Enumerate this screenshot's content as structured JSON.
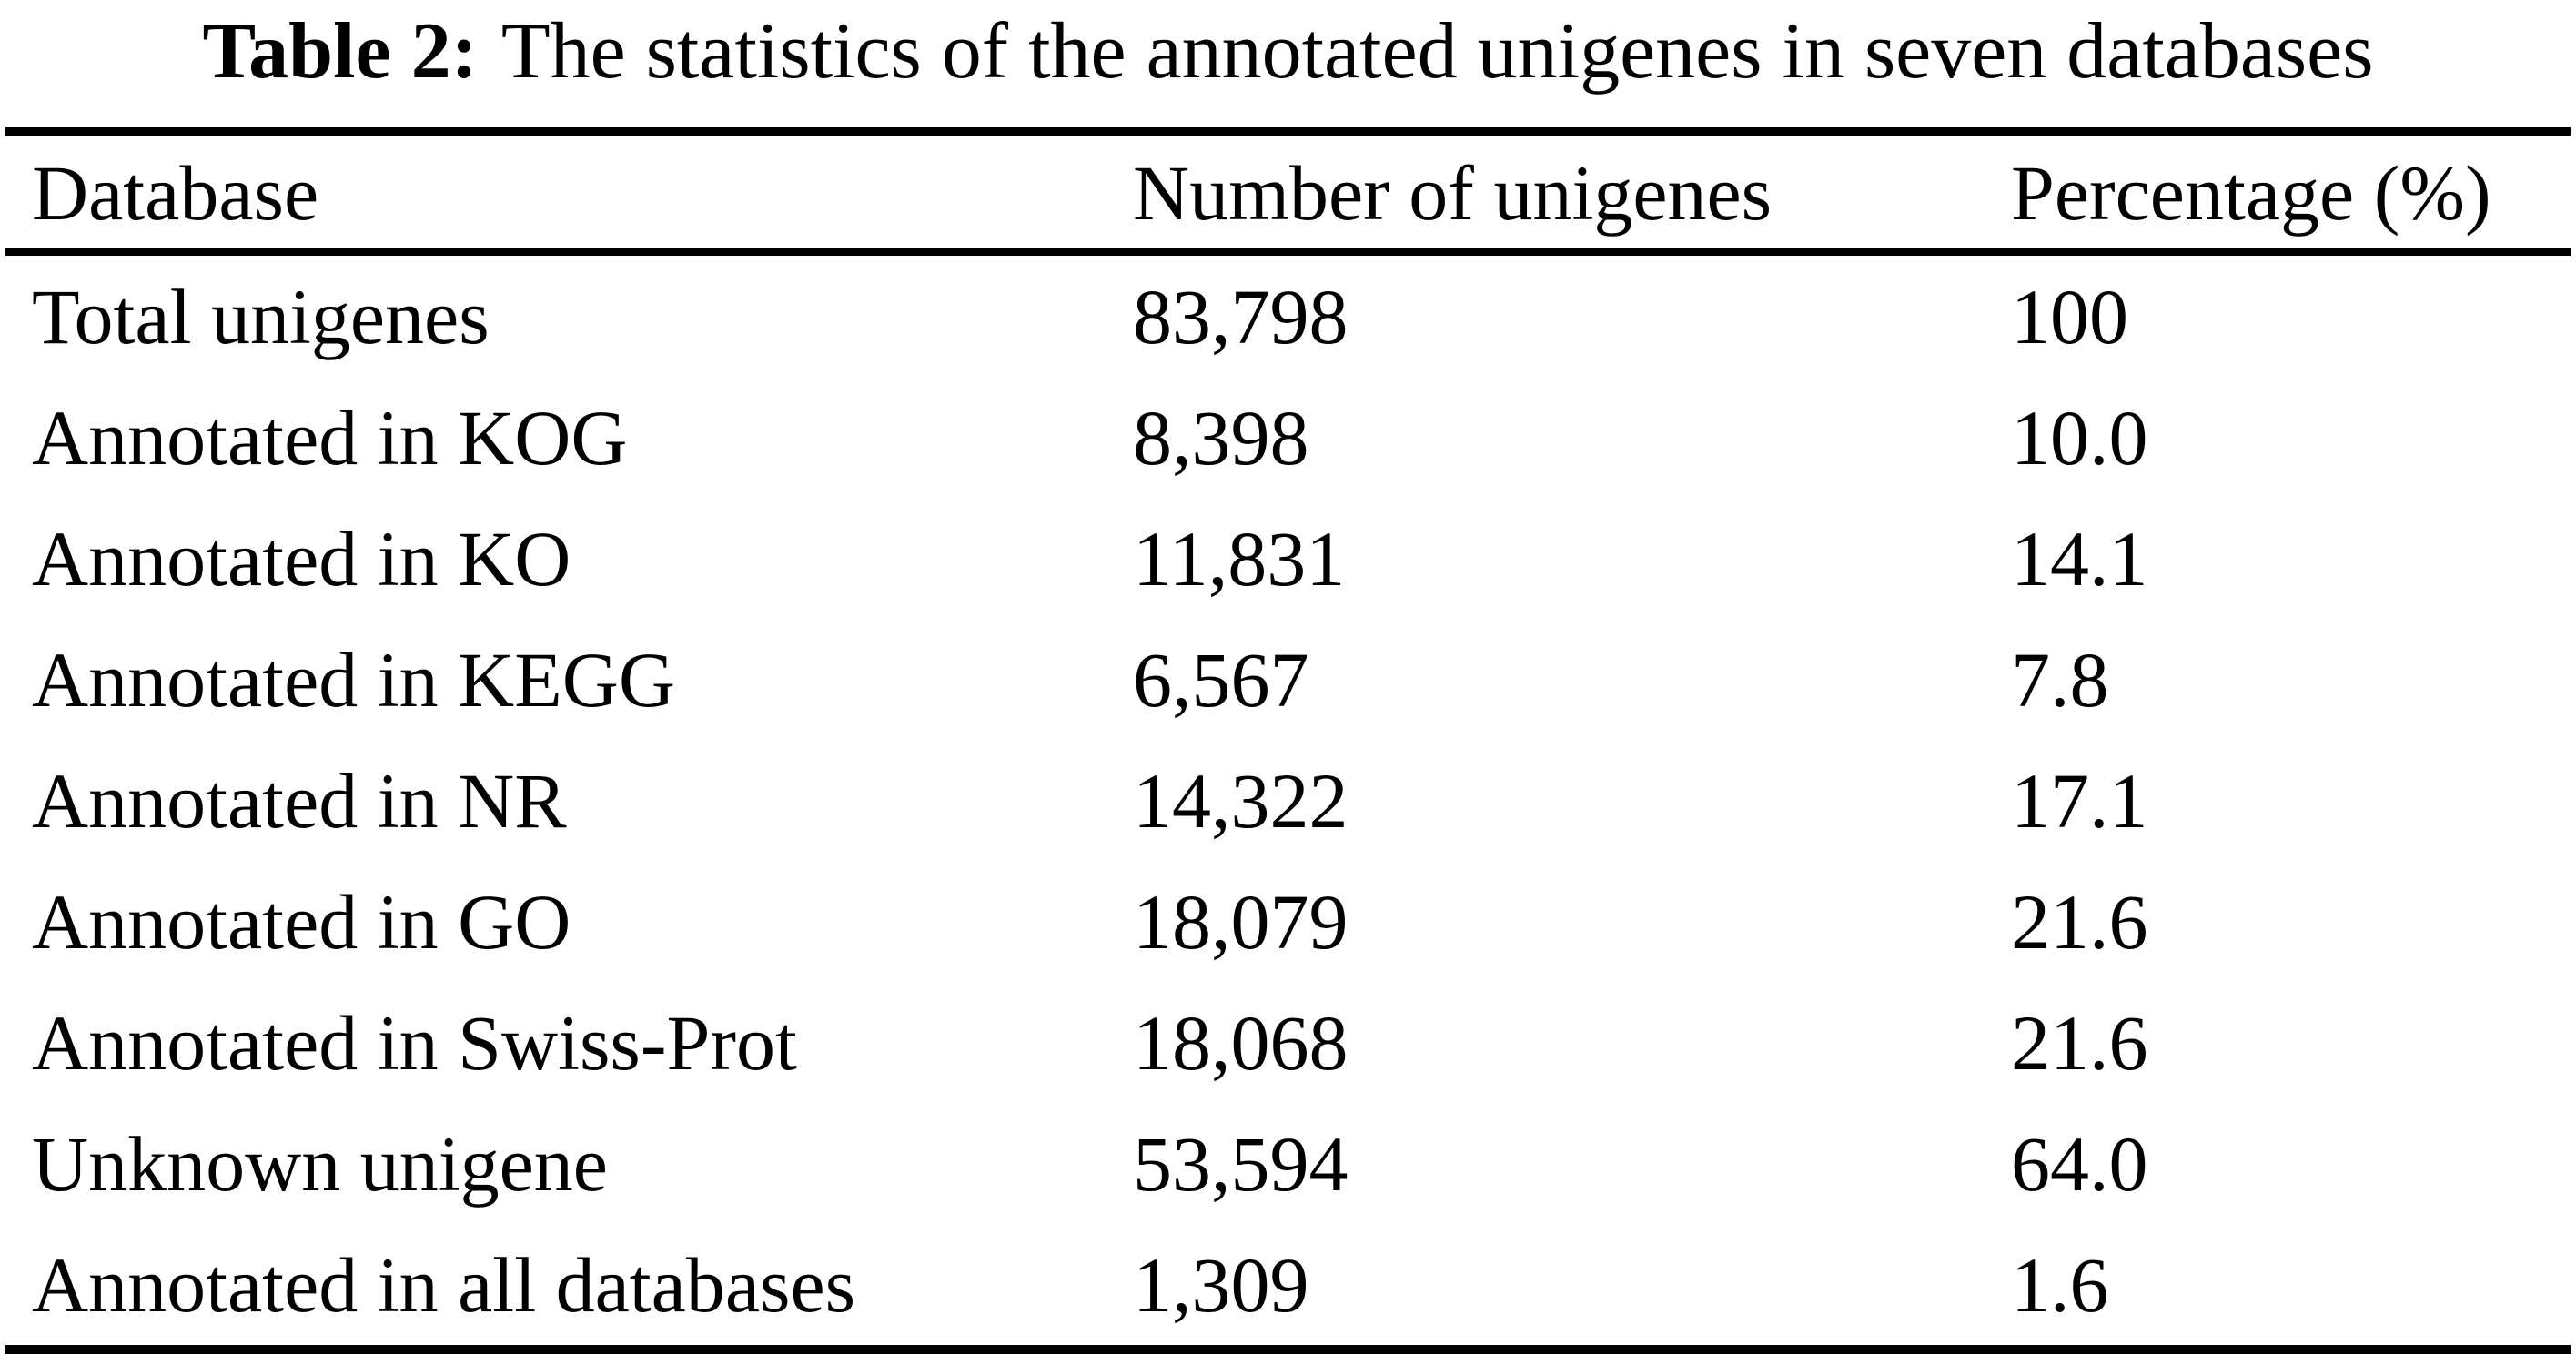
{
  "caption": {
    "label": "Table 2:",
    "text": "The statistics of the annotated unigenes in seven databases"
  },
  "table": {
    "columns": [
      "Database",
      "Number of unigenes",
      "Percentage (%)"
    ],
    "rows": [
      {
        "database": "Total unigenes",
        "count": "83,798",
        "percentage": "100"
      },
      {
        "database": "Annotated in KOG",
        "count": "8,398",
        "percentage": "10.0"
      },
      {
        "database": "Annotated in KO",
        "count": "11,831",
        "percentage": "14.1"
      },
      {
        "database": "Annotated in KEGG",
        "count": "6,567",
        "percentage": "7.8"
      },
      {
        "database": "Annotated in NR",
        "count": "14,322",
        "percentage": "17.1"
      },
      {
        "database": "Annotated in GO",
        "count": "18,079",
        "percentage": "21.6"
      },
      {
        "database": "Annotated in Swiss-Prot",
        "count": "18,068",
        "percentage": "21.6"
      },
      {
        "database": "Unknown unigene",
        "count": "53,594",
        "percentage": "64.0"
      },
      {
        "database": "Annotated in all databases",
        "count": "1,309",
        "percentage": "1.6"
      }
    ]
  },
  "colors": {
    "text": "#000000",
    "background": "#ffffff",
    "rule": "#000000"
  },
  "chart_data": {
    "type": "table",
    "title": "Table 2: The statistics of the annotated unigenes in seven databases",
    "columns": [
      "Database",
      "Number of unigenes",
      "Percentage (%)"
    ],
    "categories": [
      "Total unigenes",
      "Annotated in KOG",
      "Annotated in KO",
      "Annotated in KEGG",
      "Annotated in NR",
      "Annotated in GO",
      "Annotated in Swiss-Prot",
      "Unknown unigene",
      "Annotated in all databases"
    ],
    "series": [
      {
        "name": "Number of unigenes",
        "values": [
          83798,
          8398,
          11831,
          6567,
          14322,
          18079,
          18068,
          53594,
          1309
        ]
      },
      {
        "name": "Percentage (%)",
        "values": [
          100,
          10.0,
          14.1,
          7.8,
          17.1,
          21.6,
          21.6,
          64.0,
          1.6
        ]
      }
    ]
  }
}
